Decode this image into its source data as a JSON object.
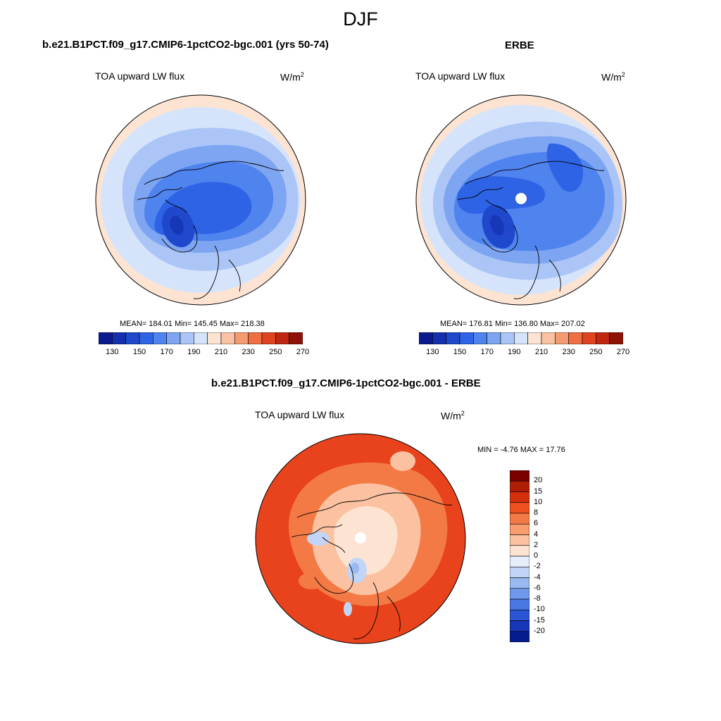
{
  "figure": {
    "title": "DJF"
  },
  "panels": {
    "model": {
      "title": "b.e21.B1PCT.f09_g17.CMIP6-1pctCO2-bgc.001 (yrs 50-74)",
      "field": "TOA upward LW flux",
      "units_base": "W/m",
      "units_exp": "2",
      "stats": "MEAN= 184.01  Min= 145.45  Max= 218.38"
    },
    "obs": {
      "title": "ERBE",
      "field": "TOA upward LW flux",
      "units_base": "W/m",
      "units_exp": "2",
      "stats": "MEAN= 176.81  Min= 136.80  Max= 207.02"
    },
    "diff": {
      "title": "b.e21.B1PCT.f09_g17.CMIP6-1pctCO2-bgc.001 - ERBE",
      "field": "TOA upward LW flux",
      "units_base": "W/m",
      "units_exp": "2",
      "stats": "MIN =  -4.76 MAX =  17.76"
    }
  },
  "colorbars": {
    "abs": {
      "colors": [
        "#0b1a8c",
        "#1530ad",
        "#1f48cc",
        "#2e63e6",
        "#4f83ee",
        "#7ea5f2",
        "#abc5f6",
        "#d6e4fb",
        "#fde4d2",
        "#f9c3a3",
        "#f49b72",
        "#ef6e43",
        "#e0431f",
        "#c02712",
        "#8e1306"
      ],
      "labels": [
        "130",
        "150",
        "170",
        "190",
        "210",
        "230",
        "250",
        "270"
      ]
    },
    "diff": {
      "colors": [
        "#7a0000",
        "#b01f05",
        "#d5300c",
        "#ee5020",
        "#f47a45",
        "#f89d70",
        "#fbc1a0",
        "#fde4d2",
        "#e6eefc",
        "#c2d5f7",
        "#9ab9f2",
        "#6f98ec",
        "#4a78e2",
        "#2a56d4",
        "#1637b8",
        "#061b8c"
      ],
      "labels": [
        "20",
        "15",
        "10",
        "8",
        "6",
        "4",
        "2",
        "0",
        "-2",
        "-4",
        "-6",
        "-8",
        "-10",
        "-15",
        "-20"
      ]
    }
  },
  "map_colors": {
    "abs_ring_warm": "#fde4d2",
    "abs_pale": "#d6e4fb",
    "abs_light": "#abc5f6",
    "abs_mid": "#7ea5f2",
    "abs_blue": "#4f83ee",
    "abs_deep": "#2e63e6",
    "abs_deepest": "#1f48cc",
    "diff_base": "#e8431c",
    "diff_mid": "#f47a45",
    "diff_light": "#fbc1a0",
    "diff_pale": "#fde4d2",
    "diff_blue": "#c2d5f7",
    "diff_blue2": "#9ab9f2"
  }
}
